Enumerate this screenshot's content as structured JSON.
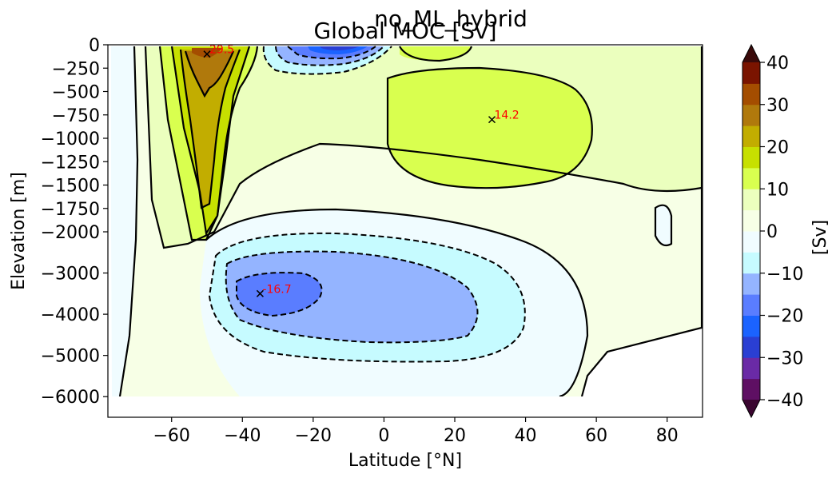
{
  "chart_data": {
    "type": "heatmap",
    "suptitle": "no_ML_hybrid",
    "title": "Global MOC [Sv]",
    "xlabel": "Latitude [°N]",
    "ylabel": "Elevation [m]",
    "xlim": [
      -78,
      90
    ],
    "x_ticks": [
      -60,
      -40,
      -20,
      0,
      20,
      40,
      60,
      80
    ],
    "x_tick_labels": [
      "−60",
      "−40",
      "−20",
      "0",
      "20",
      "40",
      "60",
      "80"
    ],
    "y_axis_note": "piecewise-linear depth axis: 0 to -2000 m expanded, -2000 to -6500 m compressed",
    "y_ticks": [
      0,
      -250,
      -500,
      -750,
      -1000,
      -1250,
      -1500,
      -1750,
      -2000,
      -3000,
      -4000,
      -5000,
      -6000
    ],
    "y_tick_labels": [
      "0",
      "−250",
      "−500",
      "−750",
      "−1000",
      "−1250",
      "−1500",
      "−1750",
      "−2000",
      "−3000",
      "−4000",
      "−5000",
      "−6000"
    ],
    "ylim": [
      -6500,
      0
    ],
    "contour_levels": [
      -40,
      -35,
      -30,
      -25,
      -20,
      -15,
      -10,
      -5,
      0,
      5,
      10,
      15,
      20,
      25,
      30,
      35,
      40
    ],
    "extrema_markers": [
      {
        "lat": -50,
        "depth": -100,
        "value": 29.5,
        "label": "29.5"
      },
      {
        "lat": 30.5,
        "depth": -800,
        "value": 14.2,
        "label": "14.2"
      },
      {
        "lat": -35,
        "depth": -3500,
        "value": -16.7,
        "label": "-16.7"
      }
    ],
    "colorbar": {
      "label": "[Sv]",
      "range": [
        -40,
        40
      ],
      "ticks": [
        40,
        30,
        20,
        10,
        0,
        -10,
        -20,
        -30,
        -40
      ],
      "tick_labels": [
        "40",
        "30",
        "20",
        "10",
        "0",
        "−10",
        "−20",
        "−30",
        "−40"
      ],
      "extend": "both",
      "colors_low_to_high": [
        "#5e0f63",
        "#6a2aa6",
        "#2a3fd3",
        "#1b63ff",
        "#5a7dff",
        "#94b4ff",
        "#c6fbff",
        "#f0fcff",
        "#f7ffe6",
        "#ebffbe",
        "#d9ff4f",
        "#c7e000",
        "#c2ad00",
        "#b0790c",
        "#a44d00",
        "#7a1400"
      ],
      "under_color": "#3a0630",
      "over_color": "#3a0a0a"
    },
    "land_mask_color": "#ffffff"
  }
}
